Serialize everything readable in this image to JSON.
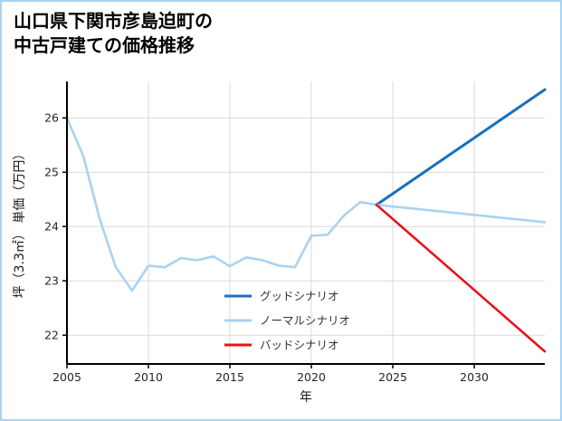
{
  "title": {
    "line1": "山口県下関市彦島迫町の",
    "line2": "中古戸建ての価格推移"
  },
  "chart_data": {
    "type": "line",
    "title": "山口県下関市彦島迫町の中古戸建ての価格推移",
    "xlabel": "年",
    "ylabel": "坪（3.3㎡） 単価（万円）",
    "xlim": [
      2005,
      2034.33
    ],
    "ylim": [
      21.47,
      26.67
    ],
    "x_ticks": [
      2005,
      2010,
      2015,
      2020,
      2025,
      2030
    ],
    "y_ticks": [
      22,
      23,
      24,
      25,
      26
    ],
    "grid": true,
    "legend_position": "inside-bottom-center",
    "colors": {
      "grid": "#d9d9d9",
      "axis": "#000000",
      "frame_border": "#aad3f2",
      "good": "#1a6fb9",
      "normal": "#a9d2f3",
      "bad": "#e8121b"
    },
    "series": [
      {
        "id": "history",
        "color": "#a9d2f3",
        "width": 2.6,
        "x": [
          2005,
          2006,
          2007,
          2008,
          2009,
          2010,
          2011,
          2012,
          2013,
          2014,
          2015,
          2016,
          2017,
          2018,
          2019,
          2020,
          2021,
          2022,
          2023,
          2024
        ],
        "values": [
          26.0,
          25.3,
          24.15,
          23.25,
          22.82,
          23.28,
          23.25,
          23.42,
          23.38,
          23.45,
          23.27,
          23.43,
          23.38,
          23.28,
          23.25,
          23.83,
          23.85,
          24.2,
          24.45,
          24.4
        ]
      },
      {
        "id": "good-scenario",
        "color": "#1a6fb9",
        "width": 3,
        "x": [
          2024,
          2034.33
        ],
        "values": [
          24.4,
          26.52
        ]
      },
      {
        "id": "normal-scenario",
        "color": "#a9d2f3",
        "width": 2.6,
        "x": [
          2024,
          2034.33
        ],
        "values": [
          24.4,
          24.08
        ]
      },
      {
        "id": "bad-scenario",
        "color": "#e8121b",
        "width": 2.6,
        "x": [
          2024,
          2034.33
        ],
        "values": [
          24.4,
          21.7
        ]
      }
    ],
    "legend": {
      "items": [
        {
          "label": "グッドシナリオ",
          "color": "#1a6fb9"
        },
        {
          "label": "ノーマルシナリオ",
          "color": "#a9d2f3"
        },
        {
          "label": "バッドシナリオ",
          "color": "#e8121b"
        }
      ]
    }
  }
}
